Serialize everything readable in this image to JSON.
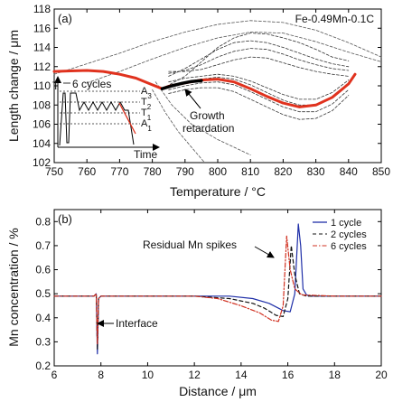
{
  "chart_data": [
    {
      "panel": "(a)",
      "type": "line",
      "legend_text": "Fe-0.49Mn-0.1C",
      "xlabel": "Temperature / °C",
      "ylabel": "Length change / μm",
      "xlim": [
        750,
        850
      ],
      "ylim": [
        102,
        118
      ],
      "x_ticks": [
        750,
        760,
        770,
        780,
        790,
        800,
        810,
        820,
        830,
        840,
        850
      ],
      "y_ticks": [
        102,
        104,
        106,
        108,
        110,
        112,
        114,
        116,
        118
      ],
      "series": [
        {
          "style": "red-thick",
          "color": "#e0321e",
          "x": [
            750,
            755,
            760,
            765,
            770,
            775,
            780,
            783,
            785,
            790,
            795,
            800,
            805,
            810,
            815,
            820,
            825,
            830,
            835,
            840,
            842
          ],
          "y": [
            111.5,
            111.55,
            111.6,
            111.5,
            111.2,
            110.8,
            110.1,
            109.7,
            109.95,
            110.3,
            110.6,
            110.7,
            110.4,
            109.7,
            108.9,
            108.2,
            107.8,
            108.0,
            108.8,
            110.2,
            111.2
          ]
        },
        {
          "style": "black-thick",
          "color": "#000000",
          "x": [
            783,
            786,
            789,
            792,
            795
          ],
          "y": [
            109.7,
            110.0,
            110.25,
            110.45,
            110.55
          ]
        },
        {
          "style": "dashed-cycle",
          "color": "#333333",
          "x": [
            783,
            790,
            795,
            800,
            805,
            810,
            815,
            820,
            825,
            830,
            835,
            840
          ],
          "y": [
            109.7,
            111.0,
            112.5,
            114.0,
            115.0,
            115.5,
            115.4,
            115.0,
            114.5,
            113.8,
            113.0,
            112.6
          ]
        },
        {
          "style": "dashed-cycle",
          "color": "#333333",
          "x": [
            785,
            790,
            795,
            800,
            805,
            810,
            815,
            820,
            825,
            830,
            835,
            840
          ],
          "y": [
            111.0,
            111.8,
            112.8,
            113.8,
            114.5,
            114.7,
            114.5,
            114.0,
            113.4,
            112.8,
            112.3,
            112.0
          ]
        },
        {
          "style": "dashed-cycle",
          "color": "#333333",
          "x": [
            785,
            790,
            795,
            800,
            805,
            810,
            815,
            820,
            825,
            830,
            835,
            840
          ],
          "y": [
            111.3,
            111.6,
            112.2,
            113.0,
            113.6,
            113.9,
            113.8,
            113.3,
            112.7,
            112.2,
            111.8,
            111.6
          ]
        },
        {
          "style": "dashed-cycle",
          "color": "#333333",
          "x": [
            785,
            790,
            795,
            800,
            805,
            810,
            815,
            820,
            825,
            830,
            835,
            840
          ],
          "y": [
            111.5,
            111.5,
            111.7,
            112.2,
            112.7,
            113.0,
            112.9,
            112.4,
            111.9,
            111.5,
            111.2,
            111.0
          ]
        },
        {
          "style": "dashed-cycle",
          "color": "#333333",
          "x": [
            785,
            790,
            795,
            800,
            805,
            810,
            815,
            820,
            825,
            830,
            835,
            840
          ],
          "y": [
            110.4,
            110.8,
            111.0,
            111.2,
            111.0,
            110.5,
            109.8,
            109.1,
            108.6,
            108.6,
            109.3,
            110.6
          ]
        },
        {
          "style": "dashed-cycle",
          "color": "#333333",
          "x": [
            785,
            790,
            795,
            800,
            805,
            810,
            815,
            820,
            825,
            830,
            835,
            840
          ],
          "y": [
            110.0,
            110.4,
            110.7,
            110.9,
            110.7,
            110.1,
            109.3,
            108.5,
            108.0,
            108.0,
            108.8,
            110.2
          ]
        },
        {
          "style": "dashed-cycle",
          "color": "#333333",
          "x": [
            785,
            790,
            795,
            800,
            805,
            810,
            815,
            820,
            825,
            830,
            835,
            840
          ],
          "y": [
            109.6,
            110.0,
            110.3,
            110.4,
            110.1,
            109.4,
            108.6,
            107.8,
            107.3,
            107.3,
            108.1,
            109.6
          ]
        },
        {
          "style": "dashed-cycle",
          "color": "#333333",
          "x": [
            785,
            790,
            795,
            800,
            805,
            810,
            815,
            820,
            825,
            830,
            835,
            840
          ],
          "y": [
            109.2,
            109.6,
            109.8,
            109.8,
            109.4,
            108.6,
            107.8,
            107.0,
            106.5,
            106.6,
            107.4,
            109.0
          ]
        },
        {
          "style": "dashed-envelope",
          "color": "#555555",
          "x": [
            750,
            760,
            770,
            780,
            790,
            800,
            810,
            820,
            830,
            840,
            850
          ],
          "y": [
            111.2,
            112.3,
            113.4,
            114.6,
            115.6,
            116.4,
            116.8,
            116.6,
            115.8,
            114.5,
            113.0
          ]
        },
        {
          "style": "dashed-envelope",
          "color": "#555555",
          "x": [
            760,
            770,
            780,
            790,
            800,
            810,
            820,
            830,
            840,
            850
          ],
          "y": [
            110.3,
            111.5,
            112.8,
            114.0,
            115.0,
            115.6,
            115.5,
            114.6,
            113.5,
            112.5
          ]
        },
        {
          "style": "dashed-envelope",
          "color": "#555555",
          "x": [
            781,
            786,
            792,
            800,
            810
          ],
          "y": [
            110.4,
            108.0,
            106.0,
            104.4,
            102.8
          ]
        },
        {
          "style": "dashed-envelope",
          "color": "#555555",
          "x": [
            780,
            784,
            788,
            792,
            796
          ],
          "y": [
            109.6,
            107.2,
            105.2,
            103.6,
            102.0
          ]
        }
      ],
      "inset": {
        "label_cycles": "6 cycles",
        "label_time": "Time",
        "label_T": "T",
        "labels_right": [
          "A3",
          "T2",
          "T1",
          "A1"
        ]
      },
      "annotations": [
        "Growth",
        "retardation"
      ]
    },
    {
      "panel": "(b)",
      "type": "line",
      "xlabel": "Distance / μm",
      "ylabel": "Mn concentration / %",
      "xlim": [
        6,
        20
      ],
      "ylim": [
        0.2,
        0.85
      ],
      "x_ticks": [
        6,
        8,
        10,
        12,
        14,
        16,
        18,
        20
      ],
      "y_ticks": [
        0.2,
        0.3,
        0.4,
        0.5,
        0.6,
        0.7,
        0.8
      ],
      "series": [
        {
          "name": "1 cycle",
          "color": "#1f2fa8",
          "dash": "",
          "x": [
            6,
            7.7,
            7.8,
            7.85,
            7.9,
            8.0,
            10,
            12,
            13.5,
            14.5,
            15.2,
            15.8,
            16.1,
            16.3,
            16.45,
            16.55,
            16.65,
            16.8,
            17.0,
            18,
            20
          ],
          "y": [
            0.49,
            0.49,
            0.5,
            0.25,
            0.48,
            0.49,
            0.49,
            0.49,
            0.49,
            0.48,
            0.46,
            0.43,
            0.425,
            0.5,
            0.79,
            0.7,
            0.52,
            0.495,
            0.49,
            0.49,
            0.49
          ]
        },
        {
          "name": "2 cycles",
          "color": "#111111",
          "dash": "4,3",
          "x": [
            6,
            7.7,
            7.8,
            7.85,
            7.9,
            8.0,
            10,
            12,
            13.5,
            14.5,
            15.0,
            15.5,
            15.8,
            16.0,
            16.15,
            16.3,
            16.5,
            16.8,
            18,
            20
          ],
          "y": [
            0.49,
            0.49,
            0.5,
            0.27,
            0.48,
            0.49,
            0.49,
            0.49,
            0.48,
            0.46,
            0.44,
            0.41,
            0.405,
            0.48,
            0.7,
            0.58,
            0.5,
            0.49,
            0.49,
            0.49
          ]
        },
        {
          "name": "6 cycles",
          "color": "#d13020",
          "dash": "5,2,1.5,2",
          "x": [
            6,
            7.7,
            7.8,
            7.85,
            7.9,
            8.0,
            10,
            12,
            13.0,
            14.0,
            14.8,
            15.3,
            15.6,
            15.8,
            15.95,
            16.1,
            16.3,
            16.6,
            18,
            20
          ],
          "y": [
            0.49,
            0.49,
            0.5,
            0.29,
            0.48,
            0.49,
            0.49,
            0.49,
            0.48,
            0.45,
            0.42,
            0.39,
            0.385,
            0.45,
            0.74,
            0.6,
            0.52,
            0.495,
            0.49,
            0.49
          ]
        }
      ],
      "annotations": [
        "Residual Mn spikes",
        "Interface"
      ]
    }
  ]
}
